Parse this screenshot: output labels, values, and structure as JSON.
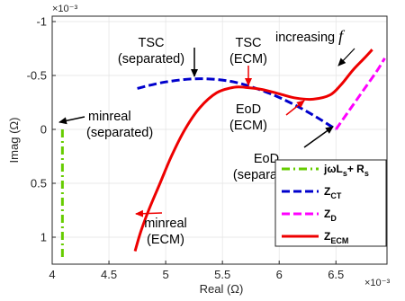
{
  "chart_data": {
    "type": "line",
    "xlabel": "Real (Ω)",
    "ylabel": "Imag (Ω)",
    "x_exponent": "×10⁻³",
    "y_exponent": "×10⁻³",
    "xlim": [
      4.0,
      6.95
    ],
    "ylim": [
      1.25,
      -1.05
    ],
    "y_reversed": true,
    "grid": true,
    "legend_position": "bottom-right",
    "x_ticks": [
      4,
      4.5,
      5,
      5.5,
      6,
      6.5
    ],
    "x_tick_labels": [
      "4",
      "4.5",
      "5",
      "5.5",
      "6",
      "6.5"
    ],
    "y_ticks": [
      -1,
      -0.5,
      0,
      0.5,
      1
    ],
    "y_tick_labels": [
      "-1",
      "-0.5",
      "0",
      "0.5",
      "1"
    ],
    "series": [
      {
        "name": "jωLₛ + Rₛ",
        "color": "#66cc00",
        "dash": "dashdot",
        "points": [
          [
            4.09,
            0.0
          ],
          [
            4.09,
            1.2
          ]
        ]
      },
      {
        "name": "Z_CT",
        "color": "#0000cc",
        "dash": "dashed",
        "points": [
          [
            4.75,
            -0.38
          ],
          [
            5.0,
            -0.44
          ],
          [
            5.3,
            -0.47
          ],
          [
            5.6,
            -0.44
          ],
          [
            5.9,
            -0.34
          ],
          [
            6.15,
            -0.22
          ],
          [
            6.35,
            -0.1
          ],
          [
            6.5,
            0.0
          ]
        ]
      },
      {
        "name": "Z_D",
        "color": "#ff00ff",
        "dash": "dashed",
        "points": [
          [
            6.5,
            0.0
          ],
          [
            6.62,
            -0.18
          ],
          [
            6.74,
            -0.36
          ],
          [
            6.86,
            -0.54
          ],
          [
            6.93,
            -0.66
          ]
        ]
      },
      {
        "name": "Z_ECM",
        "color": "#ee0000",
        "dash": "solid",
        "points": [
          [
            4.73,
            1.13
          ],
          [
            4.78,
            0.95
          ],
          [
            4.85,
            0.75
          ],
          [
            4.95,
            0.5
          ],
          [
            5.05,
            0.25
          ],
          [
            5.17,
            0.0
          ],
          [
            5.3,
            -0.2
          ],
          [
            5.45,
            -0.34
          ],
          [
            5.6,
            -0.39
          ],
          [
            5.7,
            -0.39
          ],
          [
            5.85,
            -0.37
          ],
          [
            6.0,
            -0.33
          ],
          [
            6.15,
            -0.29
          ],
          [
            6.3,
            -0.28
          ],
          [
            6.45,
            -0.32
          ],
          [
            6.55,
            -0.42
          ],
          [
            6.65,
            -0.55
          ],
          [
            6.75,
            -0.66
          ],
          [
            6.82,
            -0.74
          ]
        ]
      }
    ],
    "annotations": [
      {
        "lines": [
          "TSC",
          "(separated)"
        ],
        "arrow": "black"
      },
      {
        "lines": [
          "TSC",
          "(ECM)"
        ],
        "arrow": "red"
      },
      {
        "lines": [
          "increasing "
        ],
        "italic_suffix": "f",
        "arrow": "black"
      },
      {
        "lines": [
          "minreal",
          "(separated)"
        ],
        "arrow": "black"
      },
      {
        "lines": [
          "EoD",
          "(ECM)"
        ],
        "arrow": "red"
      },
      {
        "lines": [
          "EoD",
          "(separated)"
        ],
        "arrow": "black"
      },
      {
        "lines": [
          "minreal",
          "(ECM)"
        ],
        "arrow": "red"
      }
    ]
  }
}
